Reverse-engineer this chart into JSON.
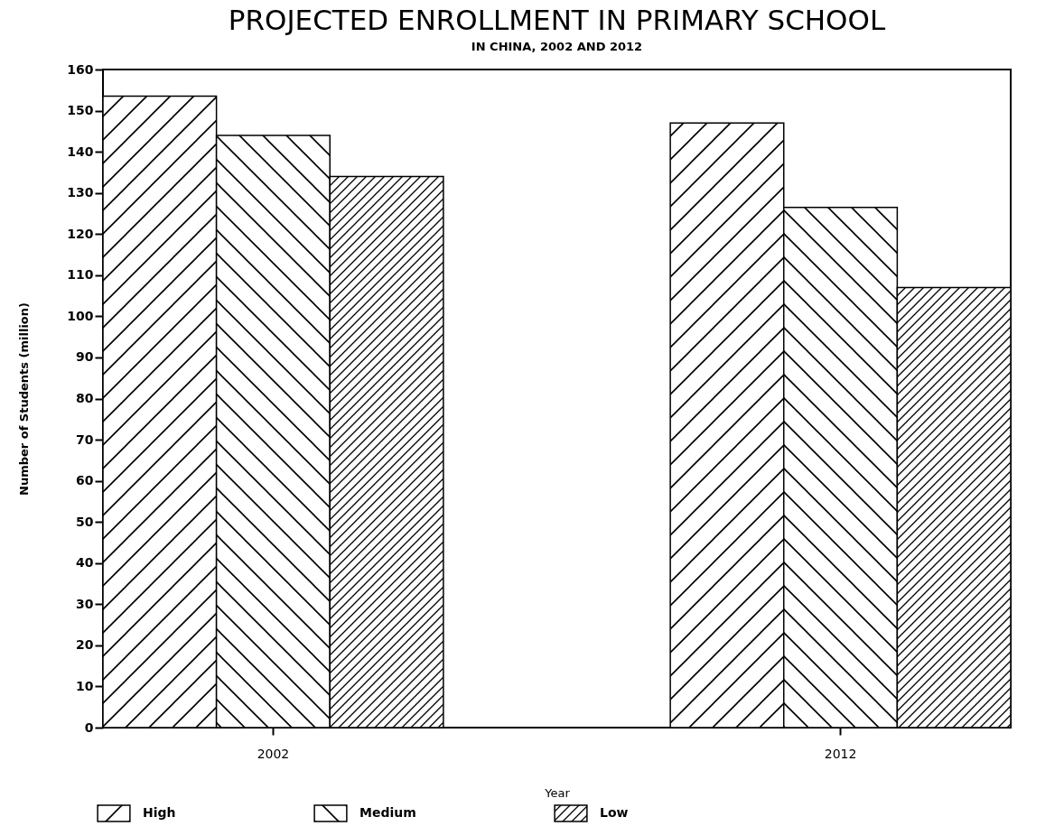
{
  "chart_data": {
    "type": "bar",
    "title": "PROJECTED ENROLLMENT IN PRIMARY SCHOOL",
    "subtitle": "IN CHINA, 2002 AND 2012",
    "xlabel": "Year",
    "ylabel": "Number of Students (million)",
    "categories": [
      "2002",
      "2012"
    ],
    "series": [
      {
        "name": "High",
        "color": "#000000",
        "values": [
          153.5,
          147
        ]
      },
      {
        "name": "Medium",
        "color": "#000000",
        "values": [
          144,
          126.5
        ]
      },
      {
        "name": "Low",
        "color": "#000000",
        "values": [
          134,
          107
        ]
      }
    ],
    "ylim": [
      0,
      160
    ],
    "yticks": [
      0,
      10,
      20,
      30,
      40,
      50,
      60,
      70,
      80,
      90,
      100,
      110,
      120,
      130,
      140,
      150,
      160
    ],
    "grid": false,
    "legend": "bottom"
  }
}
